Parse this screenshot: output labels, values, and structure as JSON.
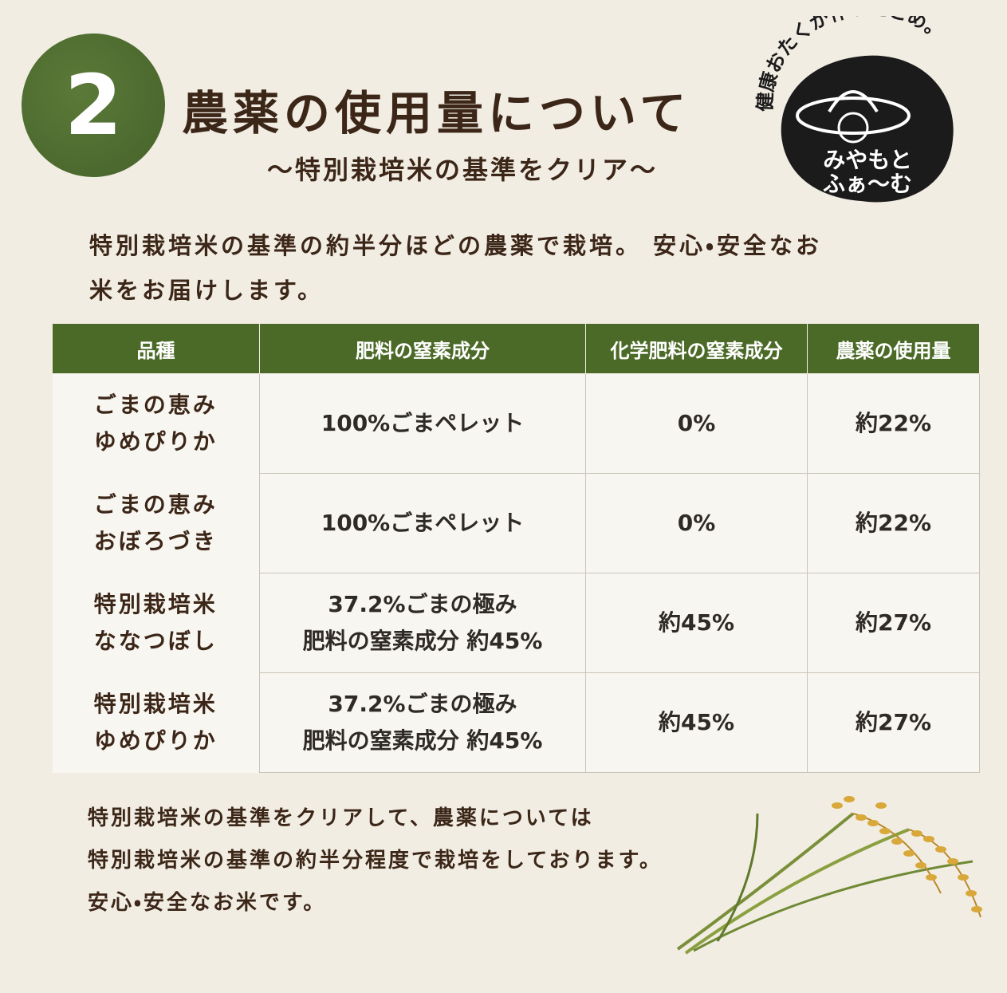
{
  "header": {
    "number": "2",
    "title": "農薬の使用量について",
    "subtitle": "〜特別栽培米の基準をクリア〜"
  },
  "logo": {
    "tagline": "健康おたくが作ったこめ。",
    "name": [
      "みやもと",
      "ふぁ〜む"
    ]
  },
  "intro": [
    "特別栽培米の基準の約半分ほどの農薬で栽培。 安心・安全なお",
    "米をお届けします。"
  ],
  "table": {
    "headers": [
      "品種",
      "肥料の窒素成分",
      "化学肥料の窒素成分",
      "農薬の使用量"
    ],
    "rows": [
      [
        [
          "ごまの恵み",
          "ゆめぴりか"
        ],
        [
          "100%ごまペレット"
        ],
        [
          "0%"
        ],
        [
          "約22%"
        ]
      ],
      [
        [
          "ごまの恵み",
          "おぼろづき"
        ],
        [
          "100%ごまペレット"
        ],
        [
          "0%"
        ],
        [
          "約22%"
        ]
      ],
      [
        [
          "特別栽培米",
          "ななつぼし"
        ],
        [
          "37.2%ごまの極み",
          "肥料の窒素成分 約45%"
        ],
        [
          "約45%"
        ],
        [
          "約27%"
        ]
      ],
      [
        [
          "特別栽培米",
          "ゆめぴりか"
        ],
        [
          "37.2%ごまの極み",
          "肥料の窒素成分 約45%"
        ],
        [
          "約45%"
        ],
        [
          "約27%"
        ]
      ]
    ]
  },
  "footer": [
    "特別栽培米の基準をクリアして、農薬については",
    "特別栽培米の基準の約半分程度で栽培をしております。",
    "安心・安全なお米です。"
  ]
}
